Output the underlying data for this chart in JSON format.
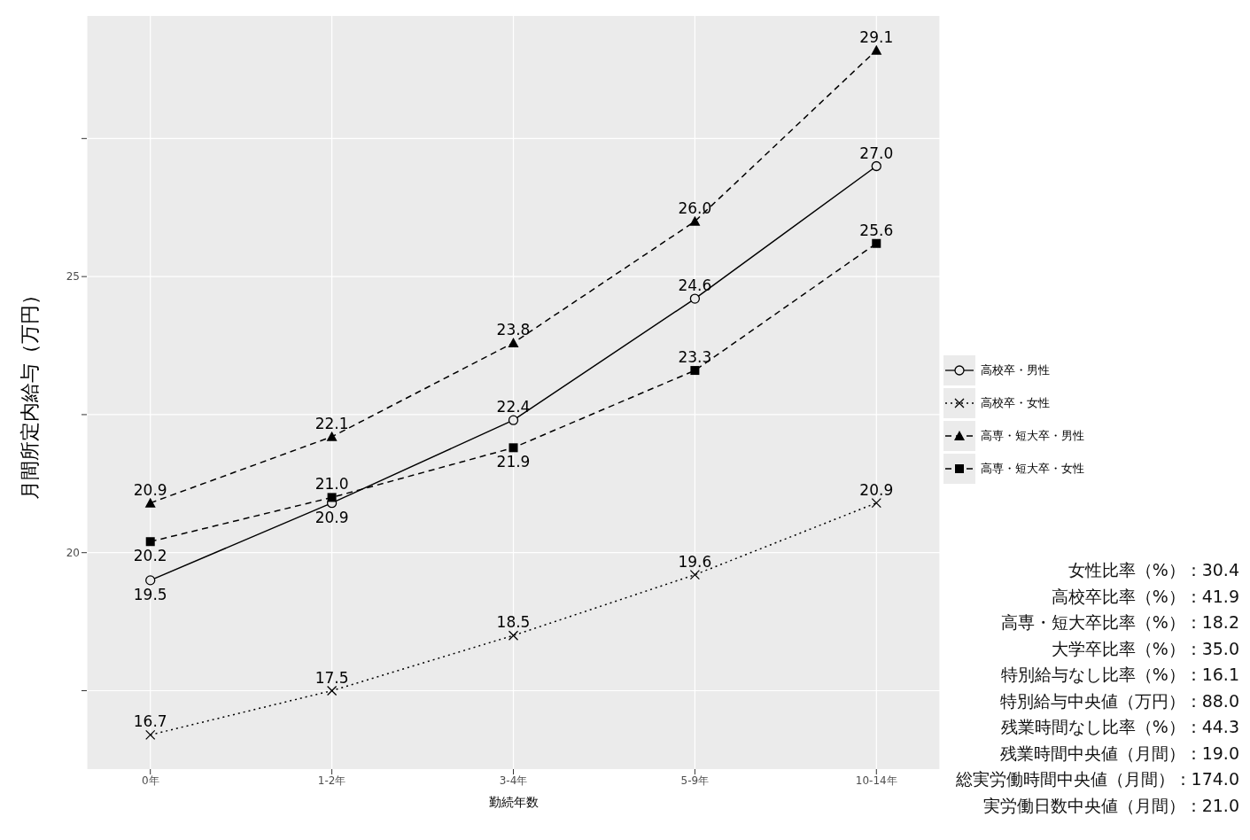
{
  "chart_data": {
    "type": "line",
    "xlabel": "勤続年数",
    "ylabel": "月間所定内給与（万円）",
    "categories": [
      "0年",
      "1-2年",
      "3-4年",
      "5-9年",
      "10-14年"
    ],
    "series": [
      {
        "name": "高校卒・男性",
        "color": "#000000",
        "values": [
          19.5,
          20.9,
          22.4,
          24.6,
          27.0
        ],
        "value_labels": [
          "19.5",
          "20.9",
          "22.4",
          "24.6",
          "27.0"
        ],
        "marker": "circle",
        "line_style": "solid"
      },
      {
        "name": "高校卒・女性",
        "color": "#000000",
        "values": [
          16.7,
          17.5,
          18.5,
          19.6,
          20.9
        ],
        "value_labels": [
          "16.7",
          "17.5",
          "18.5",
          "19.6",
          "20.9"
        ],
        "marker": "cross",
        "line_style": "dotted"
      },
      {
        "name": "高専・短大卒・男性",
        "color": "#000000",
        "values": [
          20.9,
          22.1,
          23.8,
          26.0,
          29.1
        ],
        "value_labels": [
          "20.9",
          "22.1",
          "23.8",
          "26.0",
          "29.1"
        ],
        "marker": "triangle",
        "line_style": "dashed"
      },
      {
        "name": "高専・短大卒・女性",
        "color": "#000000",
        "values": [
          20.2,
          21.0,
          21.9,
          23.3,
          25.6
        ],
        "value_labels": [
          "20.2",
          "21.0",
          "21.9",
          "23.3",
          "25.6"
        ],
        "marker": "square",
        "line_style": "dashed"
      }
    ],
    "ylim": [
      16.08,
      29.72
    ],
    "yticks": [
      {
        "value": 17.5,
        "label": null
      },
      20,
      {
        "value": 22.5,
        "label": null
      },
      25,
      {
        "value": 27.5,
        "label": null
      }
    ],
    "grid": true,
    "legend": "right",
    "annotations": [
      "女性比率（%）：30.4",
      "高校卒比率（%）：41.9",
      "高専・短大卒比率（%）：18.2",
      "大学卒比率（%）：35.0",
      "特別給与なし比率（%）：16.1",
      "特別給与中央値（万円）：88.0",
      "残業時間なし比率（%）：44.3",
      "残業時間中央値（月間）：19.0",
      "総実労働時間中央値（月間）：174.0",
      "実労働日数中央値（月間）：21.0"
    ]
  }
}
